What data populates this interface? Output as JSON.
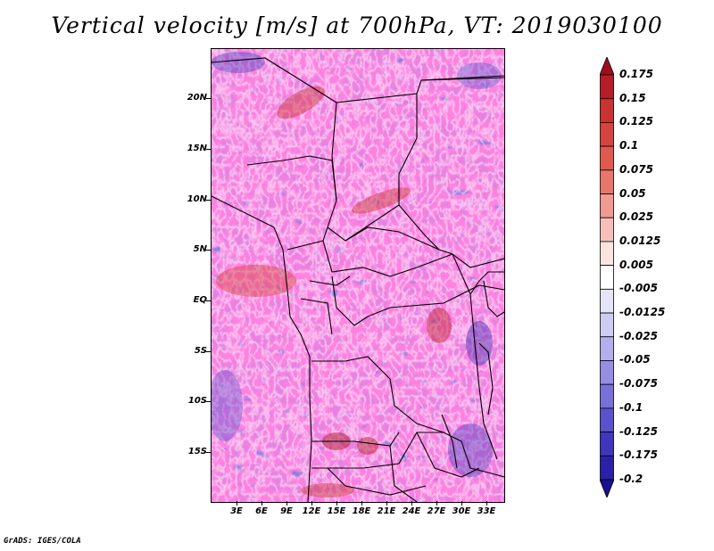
{
  "title": "Vertical velocity [m/s] at 700hPa, VT: 2019030100",
  "footer": "GrADS: IGES/COLA",
  "map": {
    "region": "Central Africa",
    "lat_range": [
      -20,
      25
    ],
    "lon_range": [
      0,
      35
    ],
    "lat_labels": [
      "20N",
      "15N",
      "10N",
      "5N",
      "EQ",
      "5S",
      "10S",
      "15S"
    ],
    "lon_labels": [
      "3E",
      "6E",
      "9E",
      "12E",
      "15E",
      "18E",
      "21E",
      "24E",
      "27E",
      "30E",
      "33E"
    ]
  },
  "colorbar": {
    "labels": [
      "0.175",
      "0.15",
      "0.125",
      "0.1",
      "0.075",
      "0.05",
      "0.025",
      "0.0125",
      "0.005",
      "-0.005",
      "-0.0125",
      "-0.025",
      "-0.05",
      "-0.075",
      "-0.1",
      "-0.125",
      "-0.175",
      "-0.2"
    ],
    "colors": [
      "#a00d1c",
      "#b71d26",
      "#c93332",
      "#d6443f",
      "#e05a52",
      "#e8766c",
      "#f09a92",
      "#f6c0ba",
      "#fbe3e0",
      "#ffffff",
      "#e6e4f8",
      "#cfcbf3",
      "#b4aeec",
      "#958ee3",
      "#7770d9",
      "#5a52cc",
      "#3f36bd",
      "#2a20aa",
      "#1a1090"
    ]
  }
}
